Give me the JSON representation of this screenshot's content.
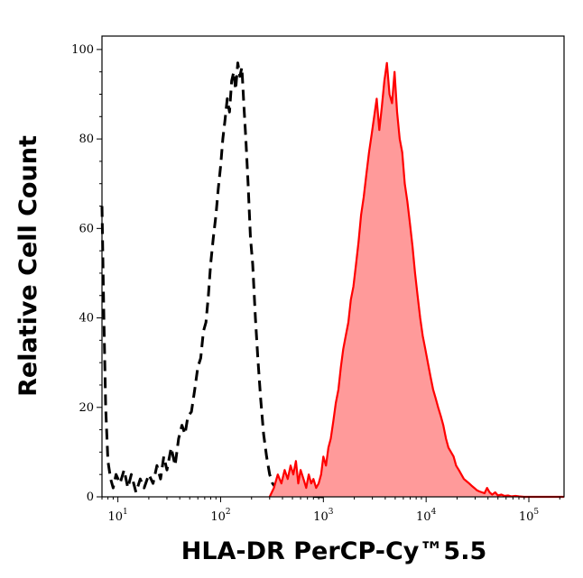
{
  "chart_data": {
    "type": "area",
    "xlabel": "HLA-DR PerCP-Cy™5.5",
    "ylabel": "Relative Cell Count",
    "x_scale": "log",
    "xlim": [
      7,
      220000
    ],
    "ylim": [
      0,
      103
    ],
    "y_ticks": [
      {
        "value": 0,
        "label": "0"
      },
      {
        "value": 20,
        "label": "20"
      },
      {
        "value": 40,
        "label": "40"
      },
      {
        "value": 60,
        "label": "60"
      },
      {
        "value": 80,
        "label": "80"
      },
      {
        "value": 100,
        "label": "100"
      }
    ],
    "x_ticks": [
      {
        "value": 10,
        "base": "10",
        "exp": "1"
      },
      {
        "value": 100,
        "base": "10",
        "exp": "2"
      },
      {
        "value": 1000,
        "base": "10",
        "exp": "3"
      },
      {
        "value": 10000,
        "base": "10",
        "exp": "4"
      },
      {
        "value": 100000,
        "base": "10",
        "exp": "5"
      }
    ],
    "series": [
      {
        "style": "dashed",
        "color": "#000000",
        "fill": "none",
        "x": [
          7,
          7.3,
          7.6,
          8,
          8.5,
          9,
          9.6,
          10.5,
          11.5,
          12.5,
          13.5,
          15,
          16.5,
          18,
          20,
          22,
          24,
          26,
          28,
          30,
          33,
          36,
          39,
          42,
          45,
          48,
          52,
          56,
          60,
          64,
          68,
          72,
          76,
          80,
          85,
          90,
          95,
          100,
          105,
          110,
          116,
          122,
          128,
          134,
          140,
          147,
          154,
          161,
          168,
          176,
          185,
          195,
          205,
          218,
          230,
          245,
          262,
          280,
          300,
          320,
          345,
          370,
          400,
          430,
          470,
          510,
          560,
          620,
          700,
          800,
          1000
        ],
        "y": [
          65,
          40,
          20,
          8,
          4,
          2,
          5,
          3,
          6,
          2,
          5,
          1,
          4,
          2,
          5,
          3,
          7,
          4,
          9,
          6,
          11,
          7,
          13,
          16,
          14,
          18,
          19,
          24,
          29,
          31,
          37,
          39,
          45,
          52,
          58,
          63,
          69,
          74,
          80,
          84,
          89,
          86,
          93,
          95,
          91,
          97,
          94,
          96,
          88,
          80,
          70,
          58,
          52,
          40,
          31,
          22,
          14,
          9,
          5,
          3,
          2,
          1,
          1.5,
          0.5,
          1,
          0.3,
          0.5,
          0.2,
          0.3,
          0.1,
          0
        ]
      },
      {
        "style": "solid",
        "color": "#ff0000",
        "fill": "#ff9a9a",
        "x": [
          300,
          330,
          360,
          390,
          420,
          450,
          480,
          510,
          540,
          570,
          600,
          640,
          680,
          720,
          760,
          800,
          850,
          900,
          950,
          1000,
          1060,
          1120,
          1180,
          1250,
          1320,
          1400,
          1480,
          1560,
          1650,
          1750,
          1850,
          1960,
          2080,
          2200,
          2330,
          2470,
          2620,
          2780,
          2950,
          3120,
          3300,
          3500,
          3700,
          3920,
          4150,
          4400,
          4660,
          4930,
          5220,
          5530,
          5860,
          6200,
          6570,
          6960,
          7370,
          7800,
          8260,
          8750,
          9270,
          9820,
          10400,
          11000,
          11700,
          12400,
          13100,
          13900,
          14700,
          15600,
          16500,
          17500,
          18500,
          19600,
          20800,
          22000,
          23300,
          24700,
          26200,
          27700,
          29400,
          31100,
          33000,
          35000,
          37000,
          39200,
          41500,
          44000,
          47000,
          50000,
          54000,
          58000,
          63000,
          68000,
          74000,
          80000,
          90000,
          100000,
          220000
        ],
        "y": [
          0,
          2,
          5,
          3,
          6,
          4,
          7,
          5,
          8,
          3,
          6,
          4,
          2,
          5,
          3,
          4,
          2,
          3,
          5,
          9,
          7,
          11,
          13,
          17,
          21,
          24,
          29,
          33,
          36,
          39,
          44,
          47,
          52,
          57,
          63,
          67,
          72,
          77,
          81,
          85,
          89,
          82,
          87,
          93,
          97,
          90,
          88,
          95,
          86,
          80,
          77,
          70,
          66,
          61,
          56,
          50,
          45,
          40,
          36,
          33,
          30,
          27,
          24,
          22,
          20,
          18,
          16,
          13,
          11,
          10,
          9,
          7,
          6,
          5,
          4,
          3.5,
          3,
          2.5,
          2,
          1.5,
          1.2,
          1,
          0.8,
          2,
          1,
          0.5,
          1,
          0.3,
          0.5,
          0.2,
          0.3,
          0.1,
          0.2,
          0.1,
          0,
          0,
          0
        ]
      }
    ]
  }
}
